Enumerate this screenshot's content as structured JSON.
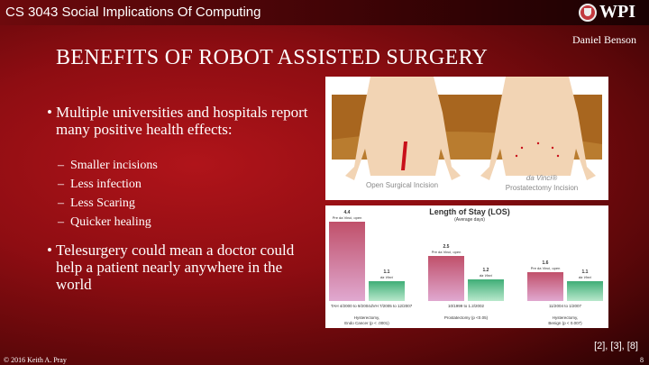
{
  "header": {
    "course": "CS 3043 Social Implications Of Computing",
    "logo_text": "WPI",
    "author": "Daniel Benson"
  },
  "title": "BENEFITS OF ROBOT ASSISTED SURGERY",
  "bullets": [
    {
      "text": "Multiple universities and hospitals report many positive health effects:",
      "sub": [
        "Smaller incisions",
        "Less infection",
        "Less Scaring",
        "Quicker healing"
      ]
    },
    {
      "text": "Telesurgery could mean a doctor could help a patient nearly anywhere in the world",
      "sub": []
    }
  ],
  "incision_image": {
    "left_label": "Open Surgical Incision",
    "right_label_1": "da Vinci®",
    "right_label_2": "Prostatectomy Incision"
  },
  "chart_data": {
    "type": "bar",
    "title": "Length of Stay (LOS)",
    "subtitle": "(Average days)",
    "groups": [
      {
        "bars": [
          {
            "value": 4.4,
            "label": "Pre da Vinci, open",
            "period": "TAH 4/2000 to 9/2004"
          },
          {
            "value": 1.1,
            "label": "da Vinci",
            "period": "dVH 7/2005 to 12/2007"
          }
        ],
        "caption_1": "Hysterectomy,",
        "caption_2": "Endo Cancer (p < .0001)"
      },
      {
        "bars": [
          {
            "value": 2.5,
            "label": "Pre da Vinci, open",
            "period": "10/1999 to 1.2/2002"
          },
          {
            "value": 1.2,
            "label": "da Vinci",
            "period": ""
          }
        ],
        "caption_1": "",
        "caption_2": "Prostatectomy (p <0.05)"
      },
      {
        "bars": [
          {
            "value": 1.6,
            "label": "Pre da Vinci, open",
            "period": "11/2004 to 1/2007"
          },
          {
            "value": 1.1,
            "label": "da Vinci",
            "period": ""
          }
        ],
        "caption_1": "Hysterectomy,",
        "caption_2": "Benign (p < 0.007)"
      }
    ],
    "colors": {
      "open": "#c0506a",
      "da_vinci": "#3fae77"
    }
  },
  "references": "[2], [3], [8]",
  "footer": {
    "copyright": "© 2016 Keith A. Pray",
    "page": "8"
  }
}
